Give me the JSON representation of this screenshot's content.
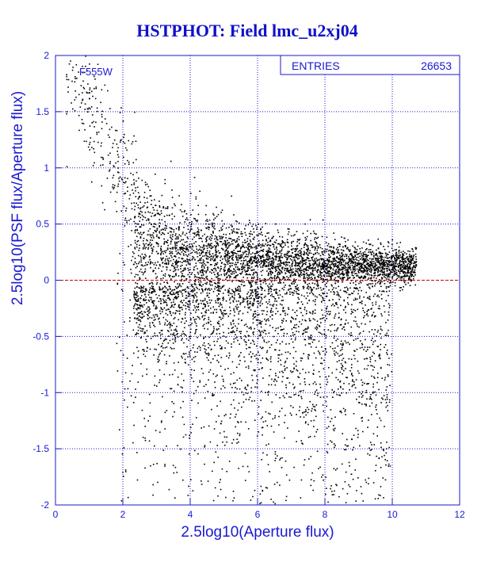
{
  "chart_data": {
    "type": "scatter",
    "title": "HSTPHOT: Field lmc_u2xj04",
    "xlabel": "2.5log10(Aperture flux)",
    "ylabel": "2.5log10(PSF flux/Aperture flux)",
    "xlim": [
      0,
      12
    ],
    "ylim": [
      -2,
      2
    ],
    "x_ticks": [
      "0",
      "2",
      "4",
      "6",
      "8",
      "10",
      "12"
    ],
    "y_ticks": [
      "2",
      "1.5",
      "1",
      "0.5",
      "0",
      "-0.5",
      "-1",
      "-1.5",
      "-2"
    ],
    "grid": true,
    "filter_label": "F555W",
    "stats_box": {
      "label": "ENTRIES",
      "value": "26653"
    },
    "reference_line": {
      "y": 0,
      "color": "#cc0000",
      "style": "dashed"
    },
    "description_points_sample": [
      {
        "x": 0.5,
        "y": 1.9
      },
      {
        "x": 1.0,
        "y": 1.7
      },
      {
        "x": 1.5,
        "y": 1.4
      },
      {
        "x": 2.0,
        "y": 1.1
      },
      {
        "x": 2.5,
        "y": 0.7
      },
      {
        "x": 3.0,
        "y": 0.45
      },
      {
        "x": 4.0,
        "y": 0.3
      },
      {
        "x": 5.0,
        "y": 0.22
      },
      {
        "x": 6.0,
        "y": 0.18
      },
      {
        "x": 7.0,
        "y": 0.15
      },
      {
        "x": 8.0,
        "y": 0.13
      },
      {
        "x": 9.0,
        "y": 0.12
      },
      {
        "x": 10.0,
        "y": 0.12
      },
      {
        "x": 10.5,
        "y": 0.13
      },
      {
        "x": 4.5,
        "y": -0.2
      },
      {
        "x": 6.0,
        "y": -0.35
      },
      {
        "x": 7.5,
        "y": -0.5
      },
      {
        "x": 5.0,
        "y": -1.2
      },
      {
        "x": 6.5,
        "y": -1.6
      },
      {
        "x": 8.0,
        "y": -1.9
      }
    ]
  },
  "colors": {
    "axis": "#1a1ad0",
    "grid": "#1a1ad0",
    "points": "#000000",
    "reference_line": "#cc0000",
    "title": "#1010c8"
  }
}
